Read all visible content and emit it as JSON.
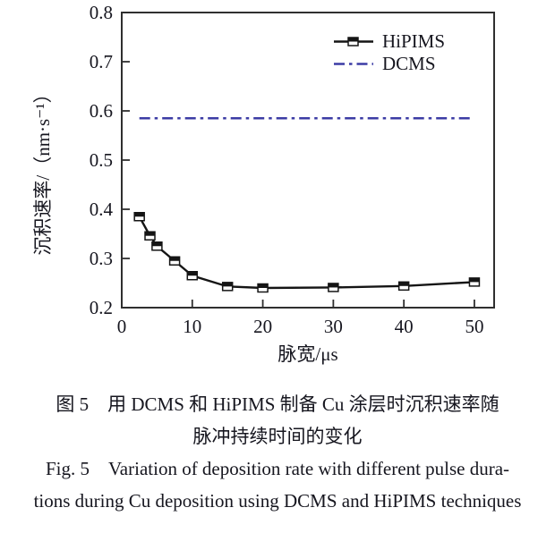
{
  "figure": {
    "caption_zh_line1": "图 5　用 DCMS 和 HiPIMS 制备 Cu 涂层时沉积速率随",
    "caption_zh_line2": "脉冲持续时间的变化",
    "caption_en_line1": "Fig. 5 Variation of deposition rate with different pulse dura-",
    "caption_en_line2": "tions during Cu deposition using DCMS and HiPIMS techniques"
  },
  "colors": {
    "axis": "#2f2f2f",
    "tick_label": "#16161f",
    "hipims": "#151515",
    "dcms": "#3c3ca5"
  },
  "chart_data": {
    "type": "line",
    "title": "",
    "xlabel": "脉宽/μs",
    "ylabel": "沉积速率/（nm·s⁻¹）",
    "xlim": [
      0,
      52.8
    ],
    "ylim": [
      0.2,
      0.8
    ],
    "xticks": [
      0,
      10,
      20,
      30,
      40,
      50
    ],
    "yticks": [
      0.2,
      0.3,
      0.4,
      0.5,
      0.6,
      0.7,
      0.8
    ],
    "grid": false,
    "legend_position": "upper-right-inside",
    "series": [
      {
        "name": "HiPIMS",
        "type": "line+marker",
        "marker": "half-filled-square",
        "color": "#151515",
        "x": [
          2.5,
          4,
          5,
          7.5,
          10,
          15,
          20,
          30,
          40,
          50
        ],
        "y": [
          0.385,
          0.346,
          0.325,
          0.295,
          0.265,
          0.243,
          0.24,
          0.241,
          0.244,
          0.252
        ]
      },
      {
        "name": "DCMS",
        "type": "dash-dot-line",
        "color": "#3c3ca5",
        "y_constant": 0.585,
        "x_start": 2.5,
        "x_end": 49.5
      }
    ]
  }
}
